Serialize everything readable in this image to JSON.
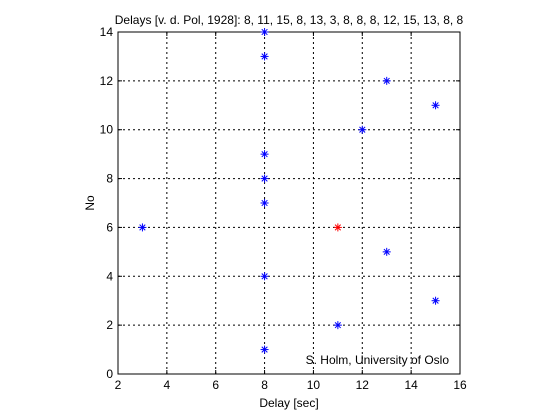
{
  "chart_data": {
    "type": "scatter",
    "title": "Delays [v. d. Pol, 1928]: 8, 11, 15, 8, 13, 3, 8, 8, 8, 12, 15, 13, 8, 8",
    "xlabel": "Delay [sec]",
    "ylabel": "No",
    "annotation": "S. Holm, University of Oslo",
    "xlim": [
      2,
      16
    ],
    "ylim": [
      0,
      14
    ],
    "xticks": [
      "2",
      "4",
      "6",
      "8",
      "10",
      "12",
      "14",
      "16"
    ],
    "yticks": [
      "0",
      "2",
      "4",
      "6",
      "8",
      "10",
      "12",
      "14"
    ],
    "grid": true,
    "marker": "*",
    "series": [
      {
        "color": "#0000ff",
        "points": [
          {
            "x": 8,
            "y": 1
          },
          {
            "x": 11,
            "y": 2
          },
          {
            "x": 15,
            "y": 3
          },
          {
            "x": 8,
            "y": 4
          },
          {
            "x": 13,
            "y": 5
          },
          {
            "x": 3,
            "y": 6
          },
          {
            "x": 8,
            "y": 7
          },
          {
            "x": 8,
            "y": 8
          },
          {
            "x": 8,
            "y": 9
          },
          {
            "x": 12,
            "y": 10
          },
          {
            "x": 15,
            "y": 11
          },
          {
            "x": 13,
            "y": 12
          },
          {
            "x": 8,
            "y": 13
          },
          {
            "x": 8,
            "y": 14
          }
        ]
      },
      {
        "color": "#ff0000",
        "points": [
          {
            "x": 11,
            "y": 6
          }
        ]
      }
    ]
  }
}
